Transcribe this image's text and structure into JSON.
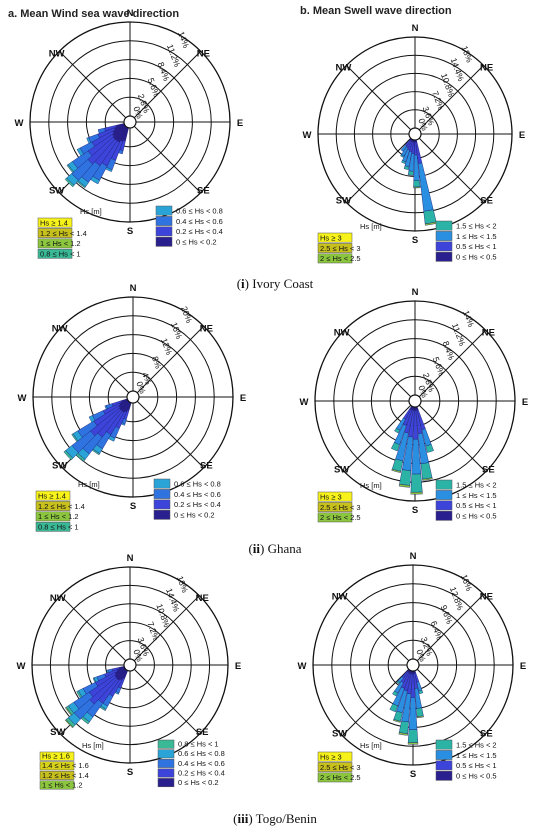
{
  "colors": {
    "ring": "#111111",
    "bar_stroke": "#1b1b6e",
    "swatch_stroke": "#555555"
  },
  "titles": {
    "left": "a. Mean Wind sea wave direction",
    "right": "b. Mean Swell wave direction"
  },
  "captions": [
    {
      "num": "i",
      "name": "Ivory Coast"
    },
    {
      "num": "ii",
      "name": "Ghana"
    },
    {
      "num": "iii",
      "name": "Togo/Benin"
    }
  ],
  "chart_data": [
    {
      "type": "polar-bar",
      "panel": "Ivory Coast - wind sea",
      "direction_labels": [
        "N",
        "NE",
        "E",
        "SE",
        "S",
        "SW",
        "W",
        "NW"
      ],
      "rings": [
        "0%",
        "2.8%",
        "5.6%",
        "8.4%",
        "11.2%",
        "14%"
      ],
      "rmax": 14,
      "legend_title": "Hs [m]",
      "legend": [
        {
          "label": "Hs ≥ 1.4",
          "color": "#f6f21a"
        },
        {
          "label": "1.2 ≤ Hs < 1.4",
          "color": "#c7c01d"
        },
        {
          "label": "1 ≤ Hs < 1.2",
          "color": "#8cc63f"
        },
        {
          "label": "0.8 ≤ Hs < 1",
          "color": "#3ab997"
        },
        {
          "label": "0.6 ≤ Hs < 0.8",
          "color": "#2aa4d6"
        },
        {
          "label": "0.4 ≤ Hs < 0.6",
          "color": "#2f73e0"
        },
        {
          "label": "0.2 ≤ Hs < 0.4",
          "color": "#3d44d9"
        },
        {
          "label": "0 ≤ Hs < 0.2",
          "color": "#2a1f8f"
        }
      ],
      "bars": [
        {
          "dir": 197,
          "total": 4.0,
          "stack": [
            0,
            0,
            0,
            0,
            0,
            0.5,
            1.5,
            2.0
          ]
        },
        {
          "dir": 204,
          "total": 7.0,
          "stack": [
            0,
            0,
            0,
            0,
            0.3,
            1.5,
            3.0,
            2.2
          ]
        },
        {
          "dir": 211,
          "total": 9.5,
          "stack": [
            0,
            0,
            0,
            0,
            0.6,
            2.4,
            4.0,
            2.5
          ]
        },
        {
          "dir": 218,
          "total": 11.0,
          "stack": [
            0,
            0,
            0,
            0.2,
            0.8,
            3.0,
            4.5,
            2.5
          ]
        },
        {
          "dir": 225,
          "total": 12.0,
          "stack": [
            0,
            0,
            0,
            0.3,
            1.0,
            3.2,
            5.0,
            2.5
          ]
        },
        {
          "dir": 232,
          "total": 10.5,
          "stack": [
            0,
            0,
            0,
            0.2,
            0.8,
            2.8,
            4.4,
            2.3
          ]
        },
        {
          "dir": 239,
          "total": 8.0,
          "stack": [
            0,
            0,
            0,
            0,
            0.5,
            2.0,
            3.5,
            2.0
          ]
        },
        {
          "dir": 246,
          "total": 6.0,
          "stack": [
            0,
            0,
            0,
            0,
            0.3,
            1.5,
            2.6,
            1.6
          ]
        },
        {
          "dir": 253,
          "total": 4.0,
          "stack": [
            0,
            0,
            0,
            0,
            0,
            1.0,
            1.8,
            1.2
          ]
        }
      ]
    },
    {
      "type": "polar-bar",
      "panel": "Ivory Coast - swell",
      "direction_labels": [
        "N",
        "NE",
        "E",
        "SE",
        "S",
        "SW",
        "W",
        "NW"
      ],
      "rings": [
        "0%",
        "3.6%",
        "7.2%",
        "10.8%",
        "14.4%",
        "18%"
      ],
      "rmax": 18,
      "legend_title": "Hs [m]",
      "legend": [
        {
          "label": "Hs ≥ 3",
          "color": "#f6f21a"
        },
        {
          "label": "2.5 ≤ Hs < 3",
          "color": "#c7c01d"
        },
        {
          "label": "2 ≤ Hs < 2.5",
          "color": "#8cc63f"
        },
        {
          "label": "1.5 ≤ Hs < 2",
          "color": "#2bb3a6"
        },
        {
          "label": "1 ≤ Hs < 1.5",
          "color": "#2a8fe0"
        },
        {
          "label": "0.5 ≤ Hs < 1",
          "color": "#3d44d9"
        },
        {
          "label": "0 ≤ Hs < 0.5",
          "color": "#2a1f8f"
        }
      ],
      "bars": [
        {
          "dir": 170,
          "total": 17.0,
          "stack": [
            0,
            0,
            0.3,
            2.5,
            9.5,
            4.2,
            0.5
          ]
        },
        {
          "dir": 178,
          "total": 9.5,
          "stack": [
            0,
            0,
            0.2,
            1.3,
            5.0,
            2.6,
            0.4
          ]
        },
        {
          "dir": 186,
          "total": 7.0,
          "stack": [
            0,
            0,
            0,
            0.8,
            3.5,
            2.3,
            0.4
          ]
        },
        {
          "dir": 194,
          "total": 6.0,
          "stack": [
            0,
            0,
            0,
            0.6,
            3.0,
            2.0,
            0.4
          ]
        },
        {
          "dir": 202,
          "total": 5.0,
          "stack": [
            0,
            0,
            0,
            0.4,
            2.4,
            1.8,
            0.4
          ]
        },
        {
          "dir": 210,
          "total": 4.0,
          "stack": [
            0,
            0,
            0,
            0.3,
            1.8,
            1.5,
            0.4
          ]
        },
        {
          "dir": 218,
          "total": 3.0,
          "stack": [
            0,
            0,
            0,
            0,
            1.3,
            1.3,
            0.4
          ]
        }
      ]
    },
    {
      "type": "polar-bar",
      "panel": "Ghana - wind sea",
      "direction_labels": [
        "N",
        "NE",
        "E",
        "SE",
        "S",
        "SW",
        "W",
        "NW"
      ],
      "rings": [
        "0%",
        "4%",
        "8%",
        "12%",
        "16%",
        "20%"
      ],
      "rmax": 20,
      "legend_title": "Hs [m]",
      "legend": [
        {
          "label": "Hs ≥ 1.4",
          "color": "#f6f21a"
        },
        {
          "label": "1.2 ≤ Hs < 1.4",
          "color": "#c7c01d"
        },
        {
          "label": "1 ≤ Hs < 1.2",
          "color": "#8cc63f"
        },
        {
          "label": "0.8 ≤ Hs < 1",
          "color": "#3ab997"
        },
        {
          "label": "0.6 ≤ Hs < 0.8",
          "color": "#2aa4d6"
        },
        {
          "label": "0.4 ≤ Hs < 0.6",
          "color": "#2f73e0"
        },
        {
          "label": "0.2 ≤ Hs < 0.4",
          "color": "#3d44d9"
        },
        {
          "label": "0 ≤ Hs < 0.2",
          "color": "#2a1f8f"
        }
      ],
      "bars": [
        {
          "dir": 200,
          "total": 5.0,
          "stack": [
            0,
            0,
            0,
            0,
            0.3,
            1.0,
            2.0,
            1.7
          ]
        },
        {
          "dir": 207,
          "total": 9.0,
          "stack": [
            0,
            0,
            0,
            0,
            0.7,
            2.3,
            3.8,
            2.2
          ]
        },
        {
          "dir": 214,
          "total": 13.0,
          "stack": [
            0,
            0,
            0,
            0.3,
            1.2,
            3.5,
            5.5,
            2.5
          ]
        },
        {
          "dir": 221,
          "total": 16.0,
          "stack": [
            0,
            0,
            0,
            0.5,
            1.5,
            4.5,
            7.0,
            2.5
          ]
        },
        {
          "dir": 228,
          "total": 17.5,
          "stack": [
            0,
            0,
            0,
            0.5,
            1.7,
            5.0,
            7.8,
            2.5
          ]
        },
        {
          "dir": 235,
          "total": 14.0,
          "stack": [
            0,
            0,
            0,
            0.3,
            1.2,
            4.0,
            6.2,
            2.3
          ]
        },
        {
          "dir": 242,
          "total": 9.0,
          "stack": [
            0,
            0,
            0,
            0,
            0.8,
            2.5,
            3.8,
            1.9
          ]
        },
        {
          "dir": 249,
          "total": 5.0,
          "stack": [
            0,
            0,
            0,
            0,
            0.3,
            1.3,
            2.0,
            1.4
          ]
        }
      ]
    },
    {
      "type": "polar-bar",
      "panel": "Ghana - swell",
      "direction_labels": [
        "N",
        "NE",
        "E",
        "SE",
        "S",
        "SW",
        "W",
        "NW"
      ],
      "rings": [
        "0%",
        "2.8%",
        "5.6%",
        "8.4%",
        "11.2%",
        "14%"
      ],
      "rmax": 14,
      "legend_title": "Hs [m]",
      "legend": [
        {
          "label": "Hs ≥ 3",
          "color": "#f6f21a"
        },
        {
          "label": "2.5 ≤ Hs < 3",
          "color": "#c7c01d"
        },
        {
          "label": "2 ≤ Hs < 2.5",
          "color": "#8cc63f"
        },
        {
          "label": "1.5 ≤ Hs < 2",
          "color": "#2bb3a6"
        },
        {
          "label": "1 ≤ Hs < 1.5",
          "color": "#2a8fe0"
        },
        {
          "label": "0.5 ≤ Hs < 1",
          "color": "#3d44d9"
        },
        {
          "label": "0 ≤ Hs < 0.5",
          "color": "#2a1f8f"
        }
      ],
      "bars": [
        {
          "dir": 163,
          "total": 7.0,
          "stack": [
            0,
            0,
            0,
            1.0,
            2.5,
            3.0,
            0.5
          ]
        },
        {
          "dir": 171,
          "total": 11.0,
          "stack": [
            0,
            0,
            0.2,
            2.3,
            4.5,
            3.5,
            0.5
          ]
        },
        {
          "dir": 179,
          "total": 13.0,
          "stack": [
            0,
            0,
            0.3,
            2.7,
            5.2,
            4.3,
            0.5
          ]
        },
        {
          "dir": 187,
          "total": 12.0,
          "stack": [
            0,
            0,
            0.3,
            2.2,
            5.0,
            4.0,
            0.5
          ]
        },
        {
          "dir": 195,
          "total": 10.0,
          "stack": [
            0,
            0,
            0.2,
            1.6,
            4.2,
            3.5,
            0.5
          ]
        },
        {
          "dir": 203,
          "total": 7.0,
          "stack": [
            0,
            0,
            0,
            1.0,
            3.0,
            2.5,
            0.5
          ]
        },
        {
          "dir": 211,
          "total": 4.5,
          "stack": [
            0,
            0,
            0,
            0.5,
            1.8,
            1.7,
            0.5
          ]
        }
      ]
    },
    {
      "type": "polar-bar",
      "panel": "Togo/Benin - wind sea",
      "direction_labels": [
        "N",
        "NE",
        "E",
        "SE",
        "S",
        "SW",
        "W",
        "NW"
      ],
      "rings": [
        "0%",
        "3.6%",
        "7.2%",
        "10.8%",
        "14.4%",
        "18%"
      ],
      "rmax": 18,
      "legend_title": "Hs [m]",
      "legend": [
        {
          "label": "Hs ≥ 1.6",
          "color": "#f6f21a"
        },
        {
          "label": "1.4 ≤ Hs < 1.6",
          "color": "#d8d21a"
        },
        {
          "label": "1.2 ≤ Hs < 1.4",
          "color": "#c7c01d"
        },
        {
          "label": "1 ≤ Hs < 1.2",
          "color": "#8cc63f"
        },
        {
          "label": "0.8 ≤ Hs < 1",
          "color": "#3ab997"
        },
        {
          "label": "0.6 ≤ Hs < 0.8",
          "color": "#2aa4d6"
        },
        {
          "label": "0.4 ≤ Hs < 0.6",
          "color": "#2f73e0"
        },
        {
          "label": "0.2 ≤ Hs < 0.4",
          "color": "#3d44d9"
        },
        {
          "label": "0 ≤ Hs < 0.2",
          "color": "#2a1f8f"
        }
      ],
      "bars": [
        {
          "dir": 205,
          "total": 5.0,
          "stack": [
            0,
            0,
            0,
            0,
            0,
            0.3,
            1.0,
            2.0,
            1.7
          ]
        },
        {
          "dir": 212,
          "total": 9.0,
          "stack": [
            0,
            0,
            0,
            0,
            0.3,
            0.7,
            2.2,
            3.6,
            2.2
          ]
        },
        {
          "dir": 219,
          "total": 13.0,
          "stack": [
            0,
            0,
            0,
            0,
            0.5,
            1.2,
            3.3,
            5.5,
            2.5
          ]
        },
        {
          "dir": 226,
          "total": 15.5,
          "stack": [
            0,
            0,
            0,
            0.2,
            0.6,
            1.5,
            4.0,
            6.7,
            2.5
          ]
        },
        {
          "dir": 233,
          "total": 14.0,
          "stack": [
            0,
            0,
            0,
            0.2,
            0.5,
            1.3,
            3.6,
            6.0,
            2.4
          ]
        },
        {
          "dir": 240,
          "total": 10.5,
          "stack": [
            0,
            0,
            0,
            0,
            0.4,
            1.0,
            2.7,
            4.3,
            2.1
          ]
        },
        {
          "dir": 247,
          "total": 6.5,
          "stack": [
            0,
            0,
            0,
            0,
            0.2,
            0.6,
            1.6,
            2.6,
            1.5
          ]
        },
        {
          "dir": 254,
          "total": 3.5,
          "stack": [
            0,
            0,
            0,
            0,
            0,
            0.3,
            0.8,
            1.4,
            1.0
          ]
        }
      ]
    },
    {
      "type": "polar-bar",
      "panel": "Togo/Benin - swell",
      "direction_labels": [
        "N",
        "NE",
        "E",
        "SE",
        "S",
        "SW",
        "W",
        "NW"
      ],
      "rings": [
        "0%",
        "3.2%",
        "6.4%",
        "9.6%",
        "12.8%",
        "16%"
      ],
      "rmax": 16,
      "legend_title": "Hs [m]",
      "legend": [
        {
          "label": "Hs ≥ 3",
          "color": "#f6f21a"
        },
        {
          "label": "2.5 ≤ Hs < 3",
          "color": "#c7c01d"
        },
        {
          "label": "2 ≤ Hs < 2.5",
          "color": "#8cc63f"
        },
        {
          "label": "1.5 ≤ Hs < 2",
          "color": "#2bb3a6"
        },
        {
          "label": "1 ≤ Hs < 1.5",
          "color": "#2a8fe0"
        },
        {
          "label": "0.5 ≤ Hs < 1",
          "color": "#3d44d9"
        },
        {
          "label": "0 ≤ Hs < 0.5",
          "color": "#2a1f8f"
        }
      ],
      "bars": [
        {
          "dir": 164,
          "total": 4.0,
          "stack": [
            0,
            0,
            0,
            0.5,
            1.5,
            1.6,
            0.4
          ]
        },
        {
          "dir": 172,
          "total": 8.0,
          "stack": [
            0,
            0,
            0.2,
            1.4,
            3.4,
            2.6,
            0.4
          ]
        },
        {
          "dir": 180,
          "total": 12.5,
          "stack": [
            0,
            0,
            0.3,
            2.2,
            5.5,
            4.0,
            0.5
          ]
        },
        {
          "dir": 188,
          "total": 11.0,
          "stack": [
            0,
            0,
            0.3,
            2.0,
            4.8,
            3.4,
            0.5
          ]
        },
        {
          "dir": 196,
          "total": 9.0,
          "stack": [
            0,
            0,
            0.2,
            1.5,
            3.8,
            3.0,
            0.5
          ]
        },
        {
          "dir": 204,
          "total": 7.5,
          "stack": [
            0,
            0,
            0,
            1.1,
            3.2,
            2.7,
            0.5
          ]
        },
        {
          "dir": 212,
          "total": 5.0,
          "stack": [
            0,
            0,
            0,
            0.6,
            2.0,
            2.0,
            0.4
          ]
        },
        {
          "dir": 220,
          "total": 3.0,
          "stack": [
            0,
            0,
            0,
            0.3,
            1.0,
            1.3,
            0.4
          ]
        }
      ]
    }
  ]
}
